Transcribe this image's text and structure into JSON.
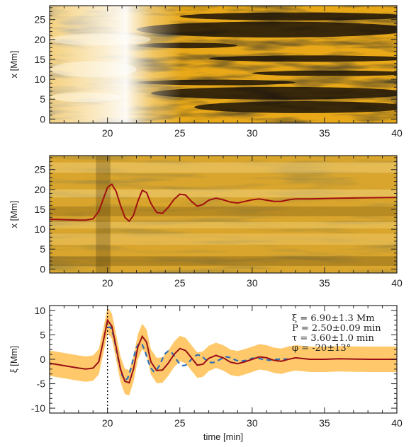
{
  "chart_data": [
    {
      "type": "heatmap",
      "xlabel": "",
      "ylabel": "x [Mm]",
      "xlim": [
        16,
        40
      ],
      "ylim": [
        -1,
        28.5
      ],
      "xticks": [
        20,
        25,
        30,
        35,
        40
      ],
      "yticks": [
        0,
        5,
        10,
        15,
        20,
        25
      ],
      "colormap": "yellow-gold (black to white)",
      "colors": {
        "dark": "#1a1208",
        "mid": "#e8a818",
        "light": "#fff6e0"
      }
    },
    {
      "type": "heatmap",
      "xlabel": "",
      "ylabel": "x [Mm]",
      "xlim": [
        16,
        40
      ],
      "ylim": [
        -1,
        28.5
      ],
      "xticks": [
        20,
        25,
        30,
        35,
        40
      ],
      "yticks": [
        0,
        5,
        10,
        15,
        20,
        25
      ],
      "overlay": {
        "type": "line",
        "color": "#a01010",
        "x": [
          16,
          17,
          18,
          18.5,
          19.0,
          19.4,
          19.7,
          20.0,
          20.3,
          20.6,
          20.9,
          21.2,
          21.5,
          21.8,
          22.1,
          22.4,
          22.7,
          23.0,
          23.4,
          23.8,
          24.2,
          24.6,
          25.0,
          25.4,
          25.8,
          26.2,
          26.6,
          27.0,
          27.5,
          28.0,
          28.5,
          29.0,
          29.5,
          30.0,
          30.5,
          31.0,
          31.5,
          32.0,
          32.5,
          33.0,
          34,
          35,
          36,
          38,
          40
        ],
        "y": [
          12.5,
          12.4,
          12.3,
          12.3,
          12.6,
          14.5,
          17.5,
          20.5,
          21.3,
          19.5,
          16.0,
          13.0,
          12.0,
          13.5,
          17.0,
          19.8,
          19.2,
          16.5,
          14.2,
          14.0,
          15.5,
          17.5,
          18.8,
          18.6,
          17.0,
          15.8,
          16.2,
          17.3,
          17.8,
          17.4,
          16.8,
          16.6,
          17.0,
          17.4,
          17.6,
          17.3,
          17.0,
          17.0,
          17.4,
          17.6,
          17.6,
          17.7,
          17.8,
          17.9,
          18.0
        ]
      }
    },
    {
      "type": "line",
      "xlabel": "time [min]",
      "ylabel": "ξ [Mm]",
      "xlim": [
        16,
        40
      ],
      "ylim": [
        -11,
        11
      ],
      "xticks": [
        20,
        25,
        30,
        35,
        40
      ],
      "yticks": [
        -10,
        -5,
        0,
        5,
        10
      ],
      "vline_x": 20,
      "legend_position": "top-right",
      "annotations": [
        "ξ = 6.90±1.3 Mm",
        "P = 2.50±0.09 min",
        "τ = 3.60±1.0 min",
        "φ = -20±13°"
      ],
      "band_halfwidth": 2.6,
      "band_color": "#ffc96b",
      "series": [
        {
          "type": "line",
          "color": "#9a0f16",
          "style": "solid",
          "x": [
            16,
            17,
            18,
            18.5,
            19.0,
            19.4,
            19.7,
            20.0,
            20.3,
            20.6,
            20.9,
            21.2,
            21.5,
            21.8,
            22.1,
            22.4,
            22.7,
            23.0,
            23.4,
            23.8,
            24.2,
            24.6,
            25.0,
            25.4,
            25.8,
            26.2,
            26.6,
            27.0,
            27.5,
            28.0,
            28.5,
            29.0,
            29.5,
            30.0,
            30.5,
            31.0,
            31.5,
            32.0,
            32.5,
            33.0,
            34,
            35,
            36,
            38,
            40
          ],
          "y": [
            -0.8,
            -1.3,
            -1.8,
            -2.0,
            -1.8,
            -0.5,
            3.5,
            8.0,
            6.8,
            2.5,
            -2.0,
            -4.5,
            -4.8,
            -2.0,
            2.5,
            4.7,
            3.5,
            -0.5,
            -2.3,
            -2.2,
            -0.8,
            1.0,
            2.2,
            1.8,
            0.3,
            -1.2,
            -1.0,
            0.2,
            0.8,
            0.3,
            -0.6,
            -0.9,
            -0.5,
            0.0,
            0.5,
            0.3,
            -0.2,
            -0.4,
            0.0,
            0.3,
            0.0,
            0.0,
            0.1,
            0.0,
            0.0
          ]
        },
        {
          "type": "line",
          "color": "#2f6fb5",
          "style": "dashed",
          "x": [
            20.0,
            20.2,
            20.4,
            20.6,
            20.8,
            21.0,
            21.2,
            21.4,
            21.6,
            21.8,
            22.0,
            22.2,
            22.4,
            22.6,
            22.8,
            23.0,
            23.2,
            23.4,
            23.6,
            23.8,
            24.0,
            24.2,
            24.4,
            24.6,
            24.8,
            25.0,
            25.2,
            25.4,
            25.6,
            25.8,
            26.0,
            26.2,
            26.4,
            26.6,
            26.8,
            27.0,
            27.2,
            27.4,
            27.6,
            27.8,
            28.0,
            28.2,
            28.4,
            28.6,
            28.8,
            29.0,
            29.2,
            29.4,
            29.6,
            29.8,
            30.0,
            30.2,
            30.4,
            30.6,
            30.8,
            31.0,
            31.2,
            31.4,
            31.6,
            31.8,
            32.0,
            32.5
          ],
          "y": [
            6.5,
            6.6,
            5.0,
            2.2,
            -0.8,
            -3.2,
            -4.3,
            -3.9,
            -2.1,
            0.3,
            2.4,
            3.3,
            3.0,
            1.6,
            -0.3,
            -1.8,
            -2.5,
            -2.2,
            -1.2,
            0.1,
            1.2,
            1.7,
            1.5,
            0.8,
            -0.2,
            -1.0,
            -1.3,
            -1.2,
            -0.7,
            0.0,
            0.6,
            0.9,
            0.8,
            0.4,
            -0.1,
            -0.5,
            -0.7,
            -0.6,
            -0.3,
            0.0,
            0.3,
            0.5,
            0.4,
            0.2,
            -0.1,
            -0.3,
            -0.4,
            -0.3,
            -0.2,
            0.0,
            0.2,
            0.2,
            0.2,
            0.1,
            -0.1,
            -0.1,
            -0.2,
            -0.1,
            0.0,
            0.0,
            0.1,
            0.0
          ]
        }
      ]
    }
  ]
}
